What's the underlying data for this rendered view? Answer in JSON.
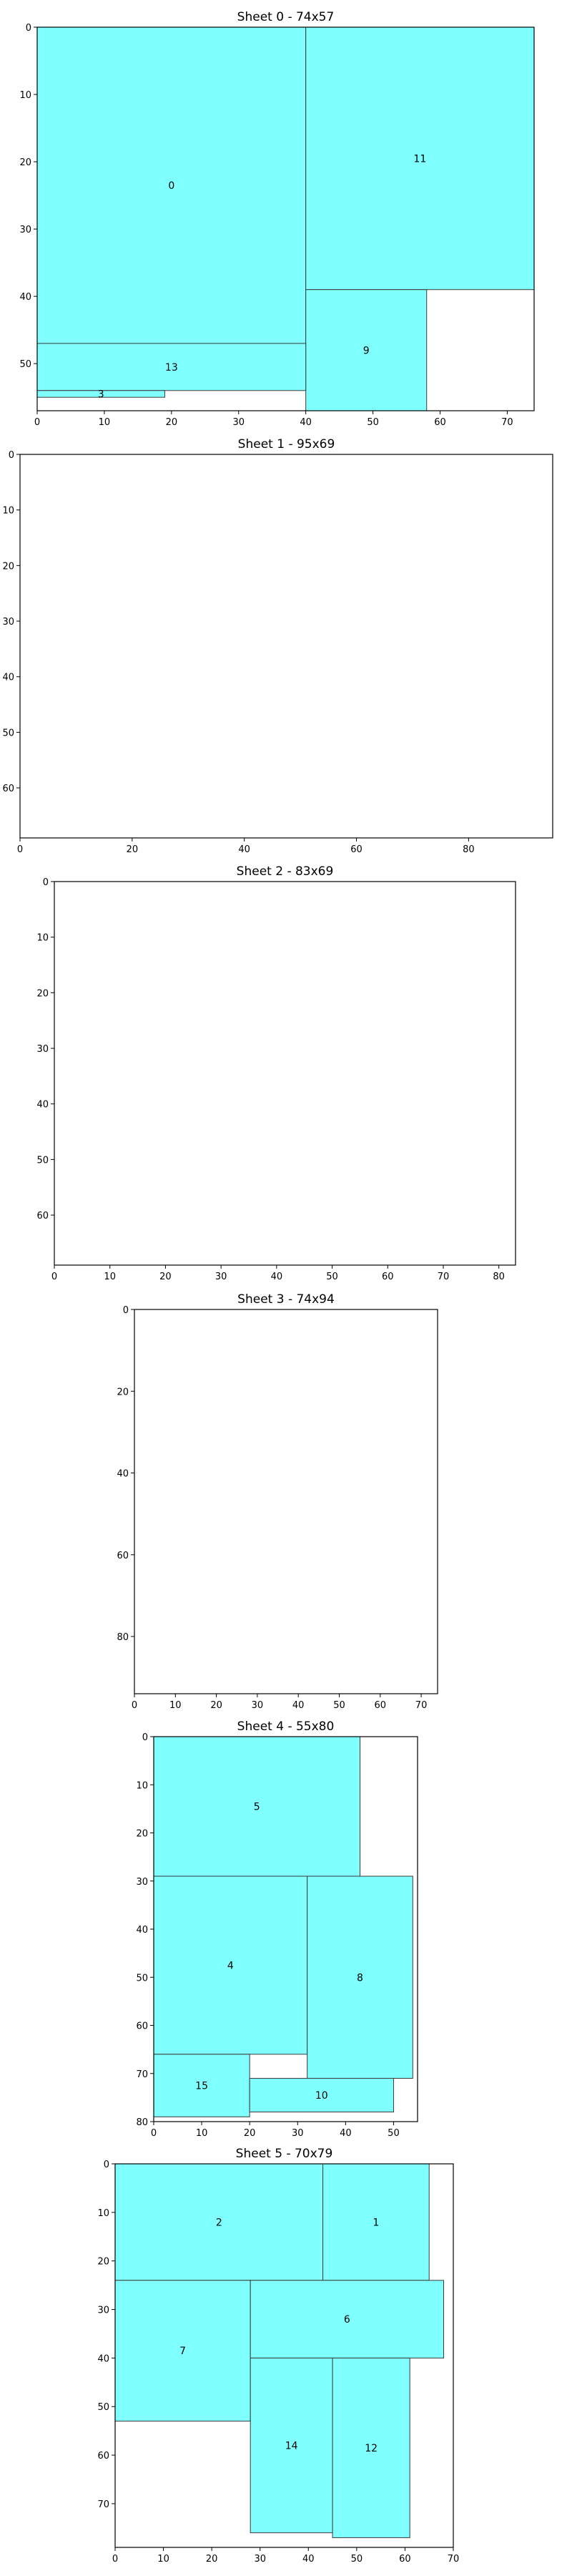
{
  "chart_data": [
    {
      "type": "rectangle-packing",
      "title": "Sheet 0 - 74x57",
      "width": 74,
      "height": 57,
      "xticks": [
        0,
        10,
        20,
        30,
        40,
        50,
        60,
        70
      ],
      "yticks": [
        0,
        10,
        20,
        30,
        40,
        50
      ],
      "fill_color": "#80ffff",
      "rects": [
        {
          "id": "0",
          "x": 0,
          "y": 0,
          "w": 40,
          "h": 47
        },
        {
          "id": "11",
          "x": 40,
          "y": 0,
          "w": 34,
          "h": 39
        },
        {
          "id": "9",
          "x": 40,
          "y": 39,
          "w": 18,
          "h": 18
        },
        {
          "id": "13",
          "x": 0,
          "y": 47,
          "w": 40,
          "h": 7
        },
        {
          "id": "3",
          "x": 0,
          "y": 54,
          "w": 19,
          "h": 1
        }
      ]
    },
    {
      "type": "rectangle-packing",
      "title": "Sheet 1 - 95x69",
      "width": 95,
      "height": 69,
      "xticks": [
        0,
        20,
        40,
        60,
        80
      ],
      "yticks": [
        0,
        10,
        20,
        30,
        40,
        50,
        60
      ],
      "fill_color": "#80ffff",
      "rects": []
    },
    {
      "type": "rectangle-packing",
      "title": "Sheet 2 - 83x69",
      "width": 83,
      "height": 69,
      "xticks": [
        0,
        10,
        20,
        30,
        40,
        50,
        60,
        70,
        80
      ],
      "yticks": [
        0,
        10,
        20,
        30,
        40,
        50,
        60
      ],
      "fill_color": "#80ffff",
      "rects": []
    },
    {
      "type": "rectangle-packing",
      "title": "Sheet 3 - 74x94",
      "width": 74,
      "height": 94,
      "xticks": [
        0,
        10,
        20,
        30,
        40,
        50,
        60,
        70
      ],
      "yticks": [
        0,
        20,
        40,
        60,
        80
      ],
      "fill_color": "#80ffff",
      "rects": []
    },
    {
      "type": "rectangle-packing",
      "title": "Sheet 4 - 55x80",
      "width": 55,
      "height": 80,
      "xticks": [
        0,
        10,
        20,
        30,
        40,
        50
      ],
      "yticks": [
        0,
        10,
        20,
        30,
        40,
        50,
        60,
        70,
        80
      ],
      "fill_color": "#80ffff",
      "rects": [
        {
          "id": "5",
          "x": 0,
          "y": 0,
          "w": 43,
          "h": 29
        },
        {
          "id": "4",
          "x": 0,
          "y": 29,
          "w": 32,
          "h": 37
        },
        {
          "id": "8",
          "x": 32,
          "y": 29,
          "w": 22,
          "h": 42
        },
        {
          "id": "15",
          "x": 0,
          "y": 66,
          "w": 20,
          "h": 13
        },
        {
          "id": "10",
          "x": 20,
          "y": 71,
          "w": 30,
          "h": 7
        }
      ]
    },
    {
      "type": "rectangle-packing",
      "title": "Sheet 5 - 70x79",
      "width": 70,
      "height": 79,
      "xticks": [
        0,
        10,
        20,
        30,
        40,
        50,
        60,
        70
      ],
      "yticks": [
        0,
        10,
        20,
        30,
        40,
        50,
        60,
        70
      ],
      "fill_color": "#80ffff",
      "rects": [
        {
          "id": "2",
          "x": 0,
          "y": 0,
          "w": 43,
          "h": 24
        },
        {
          "id": "1",
          "x": 43,
          "y": 0,
          "w": 22,
          "h": 24
        },
        {
          "id": "7",
          "x": 0,
          "y": 24,
          "w": 28,
          "h": 29
        },
        {
          "id": "6",
          "x": 28,
          "y": 24,
          "w": 40,
          "h": 16
        },
        {
          "id": "14",
          "x": 28,
          "y": 40,
          "w": 17,
          "h": 36
        },
        {
          "id": "12",
          "x": 45,
          "y": 40,
          "w": 16,
          "h": 37
        }
      ]
    }
  ]
}
